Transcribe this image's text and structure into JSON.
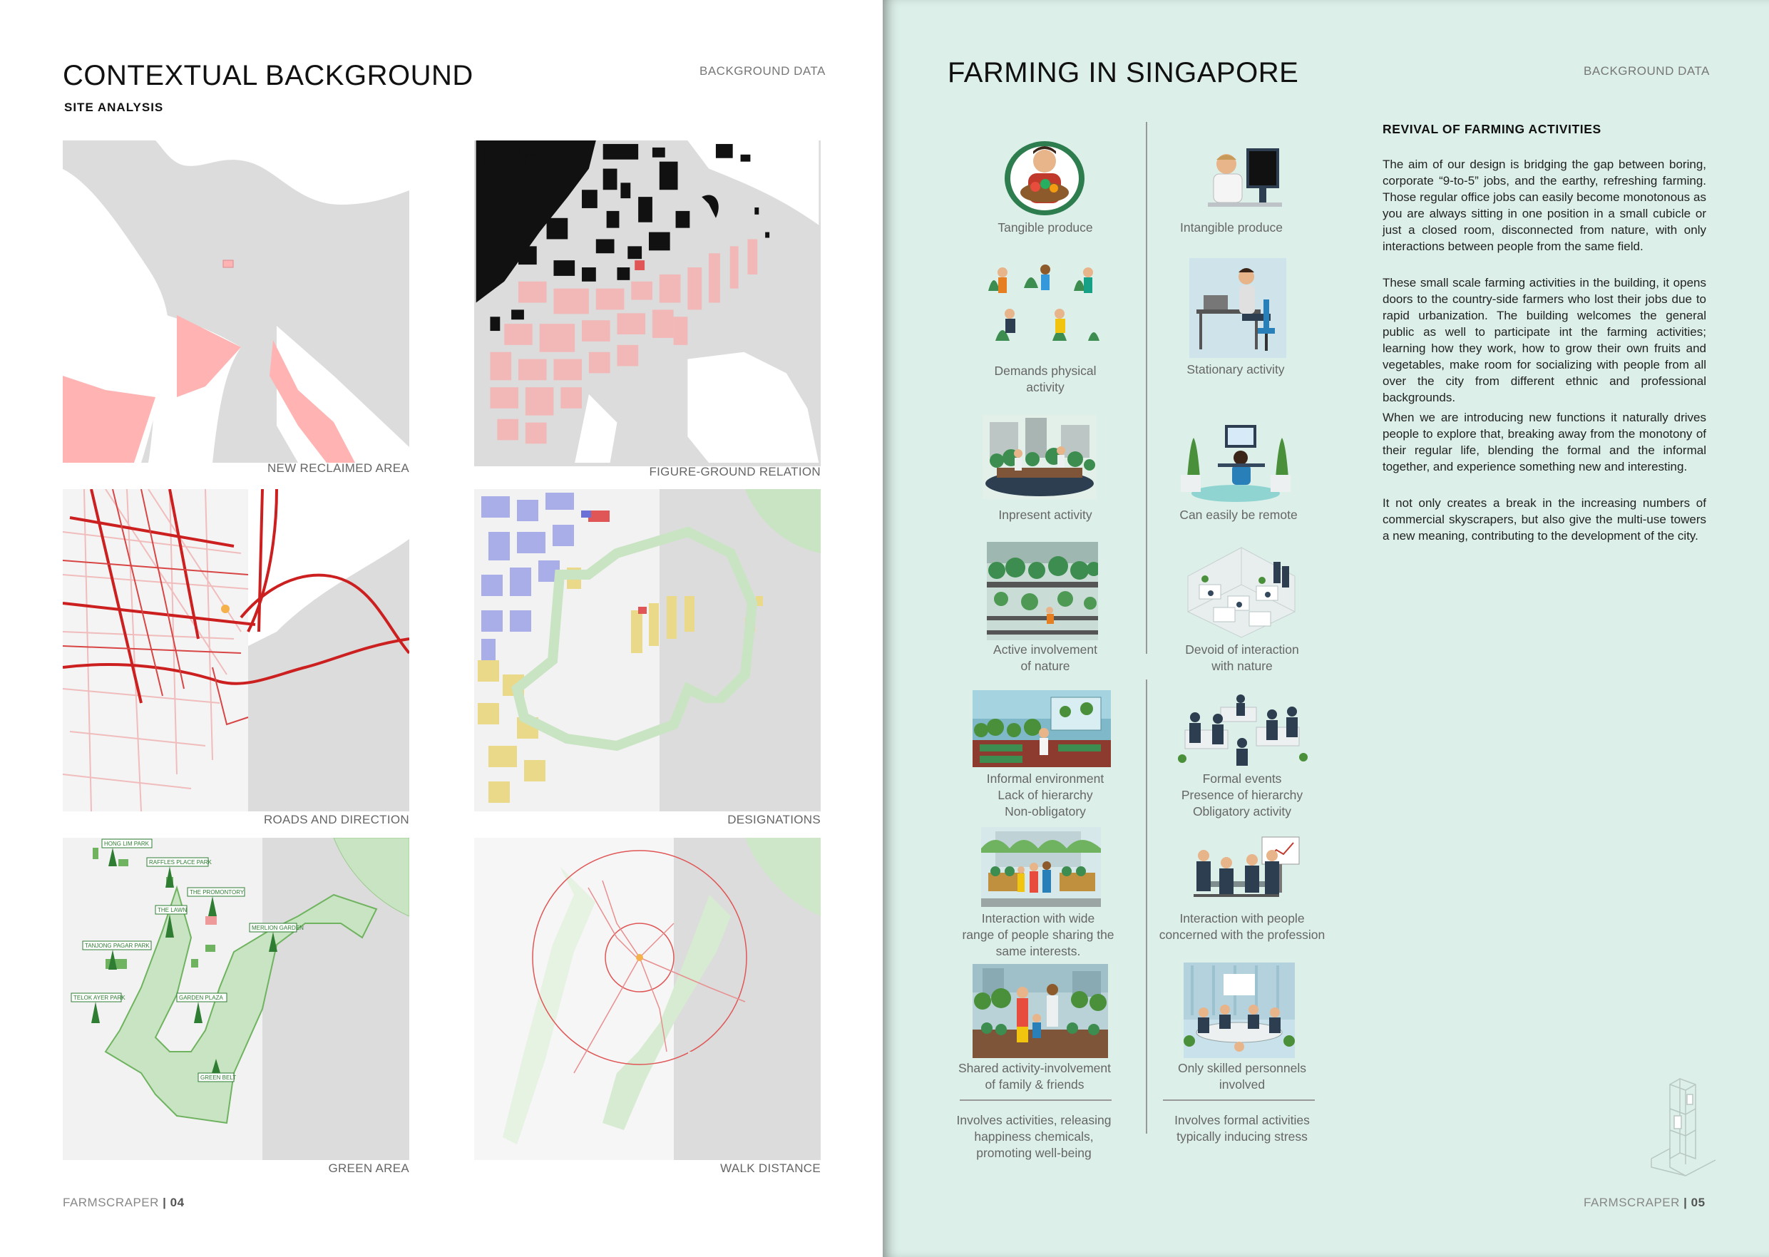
{
  "left_page": {
    "title": "CONTEXTUAL BACKGROUND",
    "subtitle": "SITE ANALYSIS",
    "tag": "BACKGROUND DATA",
    "footer_brand": "FARMSCRAPER",
    "footer_page": "04",
    "maps": [
      {
        "caption": "NEW RECLAIMED AREA"
      },
      {
        "caption": "FIGURE-GROUND RELATION"
      },
      {
        "caption": "ROADS AND DIRECTION"
      },
      {
        "caption": "DESIGNATIONS"
      },
      {
        "caption": "GREEN AREA"
      },
      {
        "caption": "WALK DISTANCE"
      }
    ],
    "green_labels": [
      "HONG LIM PARK",
      "RAFFLES PLACE PARK",
      "THE PROMONTORY",
      "THE LAWN",
      "TANJONG PAGAR PARK",
      "TELOK AYER PARK",
      "GARDEN PLAZA",
      "MERLION GARDEN",
      "GREEN BELT"
    ]
  },
  "right_page": {
    "title": "FARMING IN SINGAPORE",
    "tag": "BACKGROUND DATA",
    "footer_brand": "FARMSCRAPER",
    "footer_page": "05",
    "section_heading": "REVIVAL OF FARMING ACTIVITIES",
    "paragraphs": [
      "The aim of our design is bridging the gap between boring, corporate “9-to-5” jobs, and the earthy, refreshing farming. Those regular office jobs can easily become monotonous as you are always sitting in one position in a small cubicle or just a closed room, disconnected from nature, with only interactions between people from the same field.",
      "These small scale farming activities in the building, it opens doors to the country-side farmers who lost their jobs due to rapid urbanization. The building welcomes the general public as well to participate int the farming activities; learning how they work, how to grow their own fruits and vegetables, make room for socializing with people from all over the city from different ethnic and professional backgrounds.",
      "When we are introducing new functions it naturally drives people to explore that, breaking away from the monotony of their regular life, blending the formal and the informal together, and experience something new and interesting.",
      "It not only creates a break in the increasing numbers of commercial skyscrapers, but also give the multi-use towers a new meaning, contributing to the development of the city."
    ],
    "comparison": {
      "left": [
        "Tangible produce",
        "Demands physical\nactivity",
        "Inpresent activity",
        "Active involvement\nof nature",
        "Informal environment\nLack of hierarchy\nNon-obligatory",
        "Interaction with wide\nrange of people sharing the\nsame interests.",
        "Shared activity-involvement\nof family & friends"
      ],
      "right": [
        "Intangible produce",
        "Stationary activity",
        "Can easily be remote",
        "Devoid of interaction\nwith nature",
        "Formal events\nPresence of hierarchy\nObligatory activity",
        "Interaction with people\nconcerned with the profession",
        "Only skilled personnels\ninvolved"
      ],
      "summary_left": "Involves activities, releasing\nhappiness chemicals,\npromoting well-being",
      "summary_right": "Involves formal activities\ntypically inducing stress"
    }
  }
}
